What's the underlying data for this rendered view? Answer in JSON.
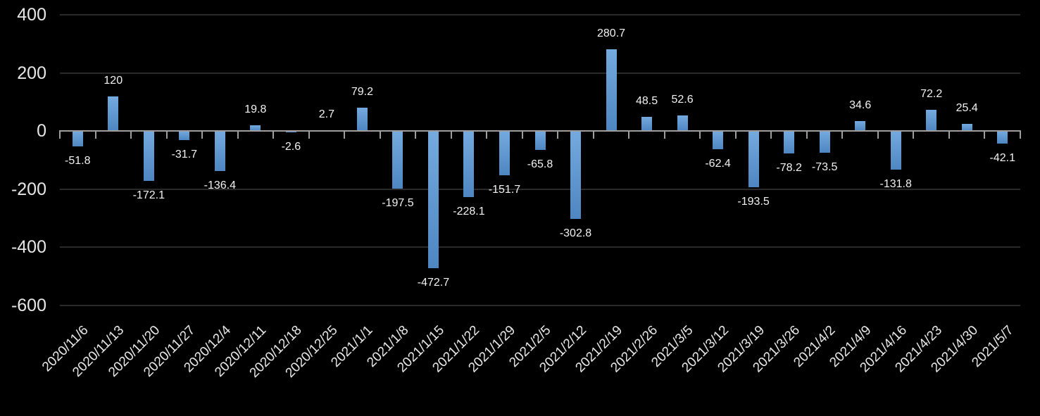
{
  "chart_data": {
    "type": "bar",
    "title": "",
    "xlabel": "",
    "ylabel": "",
    "categories": [
      "2020/11/6",
      "2020/11/13",
      "2020/11/20",
      "2020/11/27",
      "2020/12/4",
      "2020/12/11",
      "2020/12/18",
      "2020/12/25",
      "2021/1/1",
      "2021/1/8",
      "2021/1/15",
      "2021/1/22",
      "2021/1/29",
      "2021/2/5",
      "2021/2/12",
      "2021/2/19",
      "2021/2/26",
      "2021/3/5",
      "2021/3/12",
      "2021/3/19",
      "2021/3/26",
      "2021/4/2",
      "2021/4/9",
      "2021/4/16",
      "2021/4/23",
      "2021/4/30",
      "2021/5/7"
    ],
    "values": [
      -51.8,
      120,
      -172.1,
      -31.7,
      -136.4,
      19.8,
      -2.6,
      2.7,
      79.2,
      -197.5,
      -472.7,
      -228.1,
      -151.7,
      -65.8,
      -302.8,
      280.7,
      48.5,
      52.6,
      -62.4,
      -193.5,
      -78.2,
      -73.5,
      34.6,
      -131.8,
      72.2,
      25.4,
      -42.1
    ],
    "data_labels": [
      "-51.8",
      "120",
      "-172.1",
      "-31.7",
      "-136.4",
      "19.8",
      "-2.6",
      "2.7",
      "79.2",
      "-197.5",
      "-472.7",
      "-228.1",
      "-151.7",
      "-65.8",
      "-302.8",
      "280.7",
      "48.5",
      "52.6",
      "-62.4",
      "-193.5",
      "-78.2",
      "-73.5",
      "34.6",
      "-131.8",
      "72.2",
      "25.4",
      "-42.1"
    ],
    "ylim": [
      -600,
      400
    ],
    "yticks": [
      400,
      200,
      0,
      -200,
      -400,
      -600
    ],
    "ytick_labels": [
      "400",
      "200",
      "0",
      "-200",
      "-400",
      "-600"
    ],
    "grid": "horizontal",
    "legend_position": "none",
    "colors": {
      "background": "#000000",
      "bar_top": "#74aade",
      "bar_bottom": "#4e86c2",
      "gridline": "#2a2a2a",
      "axis_line": "#9e9e9e",
      "axis_text": "#e6e6e6",
      "data_label_text": "#f2f2f2"
    }
  }
}
